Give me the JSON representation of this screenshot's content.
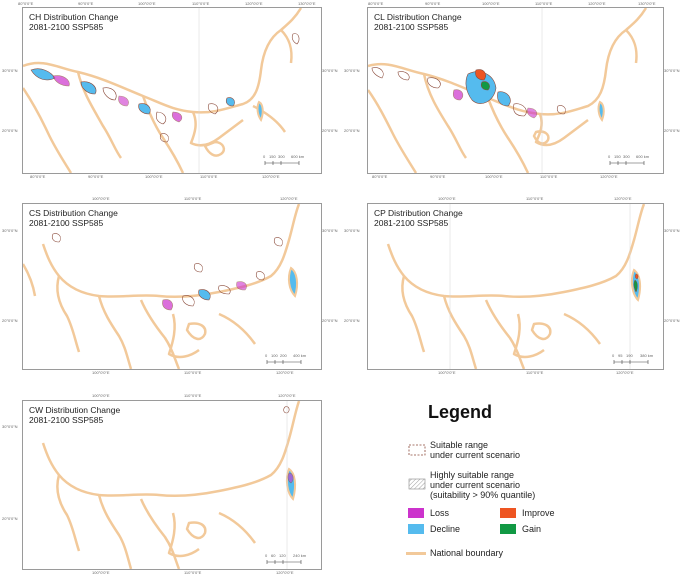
{
  "panels": [
    {
      "id": "ch",
      "title": "CH Distribution Change",
      "subtitle": "2081-2100 SSP585",
      "top_ticks": [
        "80°0'0\"E",
        "90°0'0\"E",
        "100°0'0\"E",
        "110°0'0\"E",
        "120°0'0\"E",
        "130°0'0\"E"
      ],
      "bottom_ticks": [
        "80°0'0\"E",
        "90°0'0\"E",
        "100°0'0\"E",
        "110°0'0\"E",
        "120°0'0\"E"
      ],
      "left_ticks": [
        "30°0'0\"N",
        "20°0'0\"N"
      ],
      "right_ticks": [
        "30°0'0\"N",
        "20°0'0\"N"
      ],
      "scale": [
        "0",
        "150",
        "300",
        "600 km"
      ]
    },
    {
      "id": "cl",
      "title": "CL Distribution Change",
      "subtitle": "2081-2100 SSP585",
      "top_ticks": [
        "80°0'0\"E",
        "90°0'0\"E",
        "100°0'0\"E",
        "110°0'0\"E",
        "120°0'0\"E",
        "130°0'0\"E"
      ],
      "bottom_ticks": [
        "80°0'0\"E",
        "90°0'0\"E",
        "100°0'0\"E",
        "110°0'0\"E",
        "120°0'0\"E"
      ],
      "left_ticks": [
        "30°0'0\"N",
        "20°0'0\"N"
      ],
      "right_ticks": [
        "30°0'0\"N",
        "20°0'0\"N"
      ],
      "scale": [
        "0",
        "150",
        "300",
        "600 km"
      ]
    },
    {
      "id": "cs",
      "title": "CS Distribution Change",
      "subtitle": "2081-2100 SSP585",
      "top_ticks": [
        "100°0'0\"E",
        "110°0'0\"E",
        "120°0'0\"E"
      ],
      "bottom_ticks": [
        "100°0'0\"E",
        "110°0'0\"E",
        "120°0'0\"E"
      ],
      "left_ticks": [
        "30°0'0\"N",
        "20°0'0\"N"
      ],
      "right_ticks": [
        "30°0'0\"N",
        "20°0'0\"N"
      ],
      "scale": [
        "0",
        "100",
        "200",
        "400 km"
      ]
    },
    {
      "id": "cp",
      "title": "CP Distribution Change",
      "subtitle": "2081-2100 SSP585",
      "top_ticks": [
        "100°0'0\"E",
        "110°0'0\"E",
        "120°0'0\"E"
      ],
      "bottom_ticks": [
        "100°0'0\"E",
        "110°0'0\"E",
        "120°0'0\"E"
      ],
      "left_ticks": [
        "30°0'0\"N",
        "20°0'0\"N"
      ],
      "right_ticks": [
        "30°0'0\"N",
        "20°0'0\"N"
      ],
      "scale": [
        "0",
        "95",
        "190",
        "380 km"
      ]
    },
    {
      "id": "cw",
      "title": "CW Distribution Change",
      "subtitle": "2081-2100 SSP585",
      "top_ticks": [
        "100°0'0\"E",
        "110°0'0\"E",
        "120°0'0\"E"
      ],
      "bottom_ticks": [
        "100°0'0\"E",
        "110°0'0\"E",
        "120°0'0\"E"
      ],
      "left_ticks": [
        "30°0'0\"N",
        "20°0'0\"N"
      ],
      "right_ticks": [
        "30°0'0\"N",
        "20°0'0\"N"
      ],
      "scale": [
        "0",
        "60",
        "120",
        "240 km"
      ]
    }
  ],
  "legend": {
    "title": "Legend",
    "suitable_line1": "Suitable range",
    "suitable_line2": "under current scenario",
    "highly_line1": "Highly suitable range",
    "highly_line2": "under current scenario",
    "highly_line3": "(suitability > 90% quantile)",
    "loss": "Loss",
    "improve": "Improve",
    "decline": "Decline",
    "gain": "Gain",
    "boundary": "National boundary"
  },
  "colors": {
    "boundary": "#f2c99a",
    "loss": "#cc33cc",
    "decline": "#55bbee",
    "improve": "#ee5522",
    "gain": "#119944",
    "suitable_outline": "#8a4a3a"
  }
}
